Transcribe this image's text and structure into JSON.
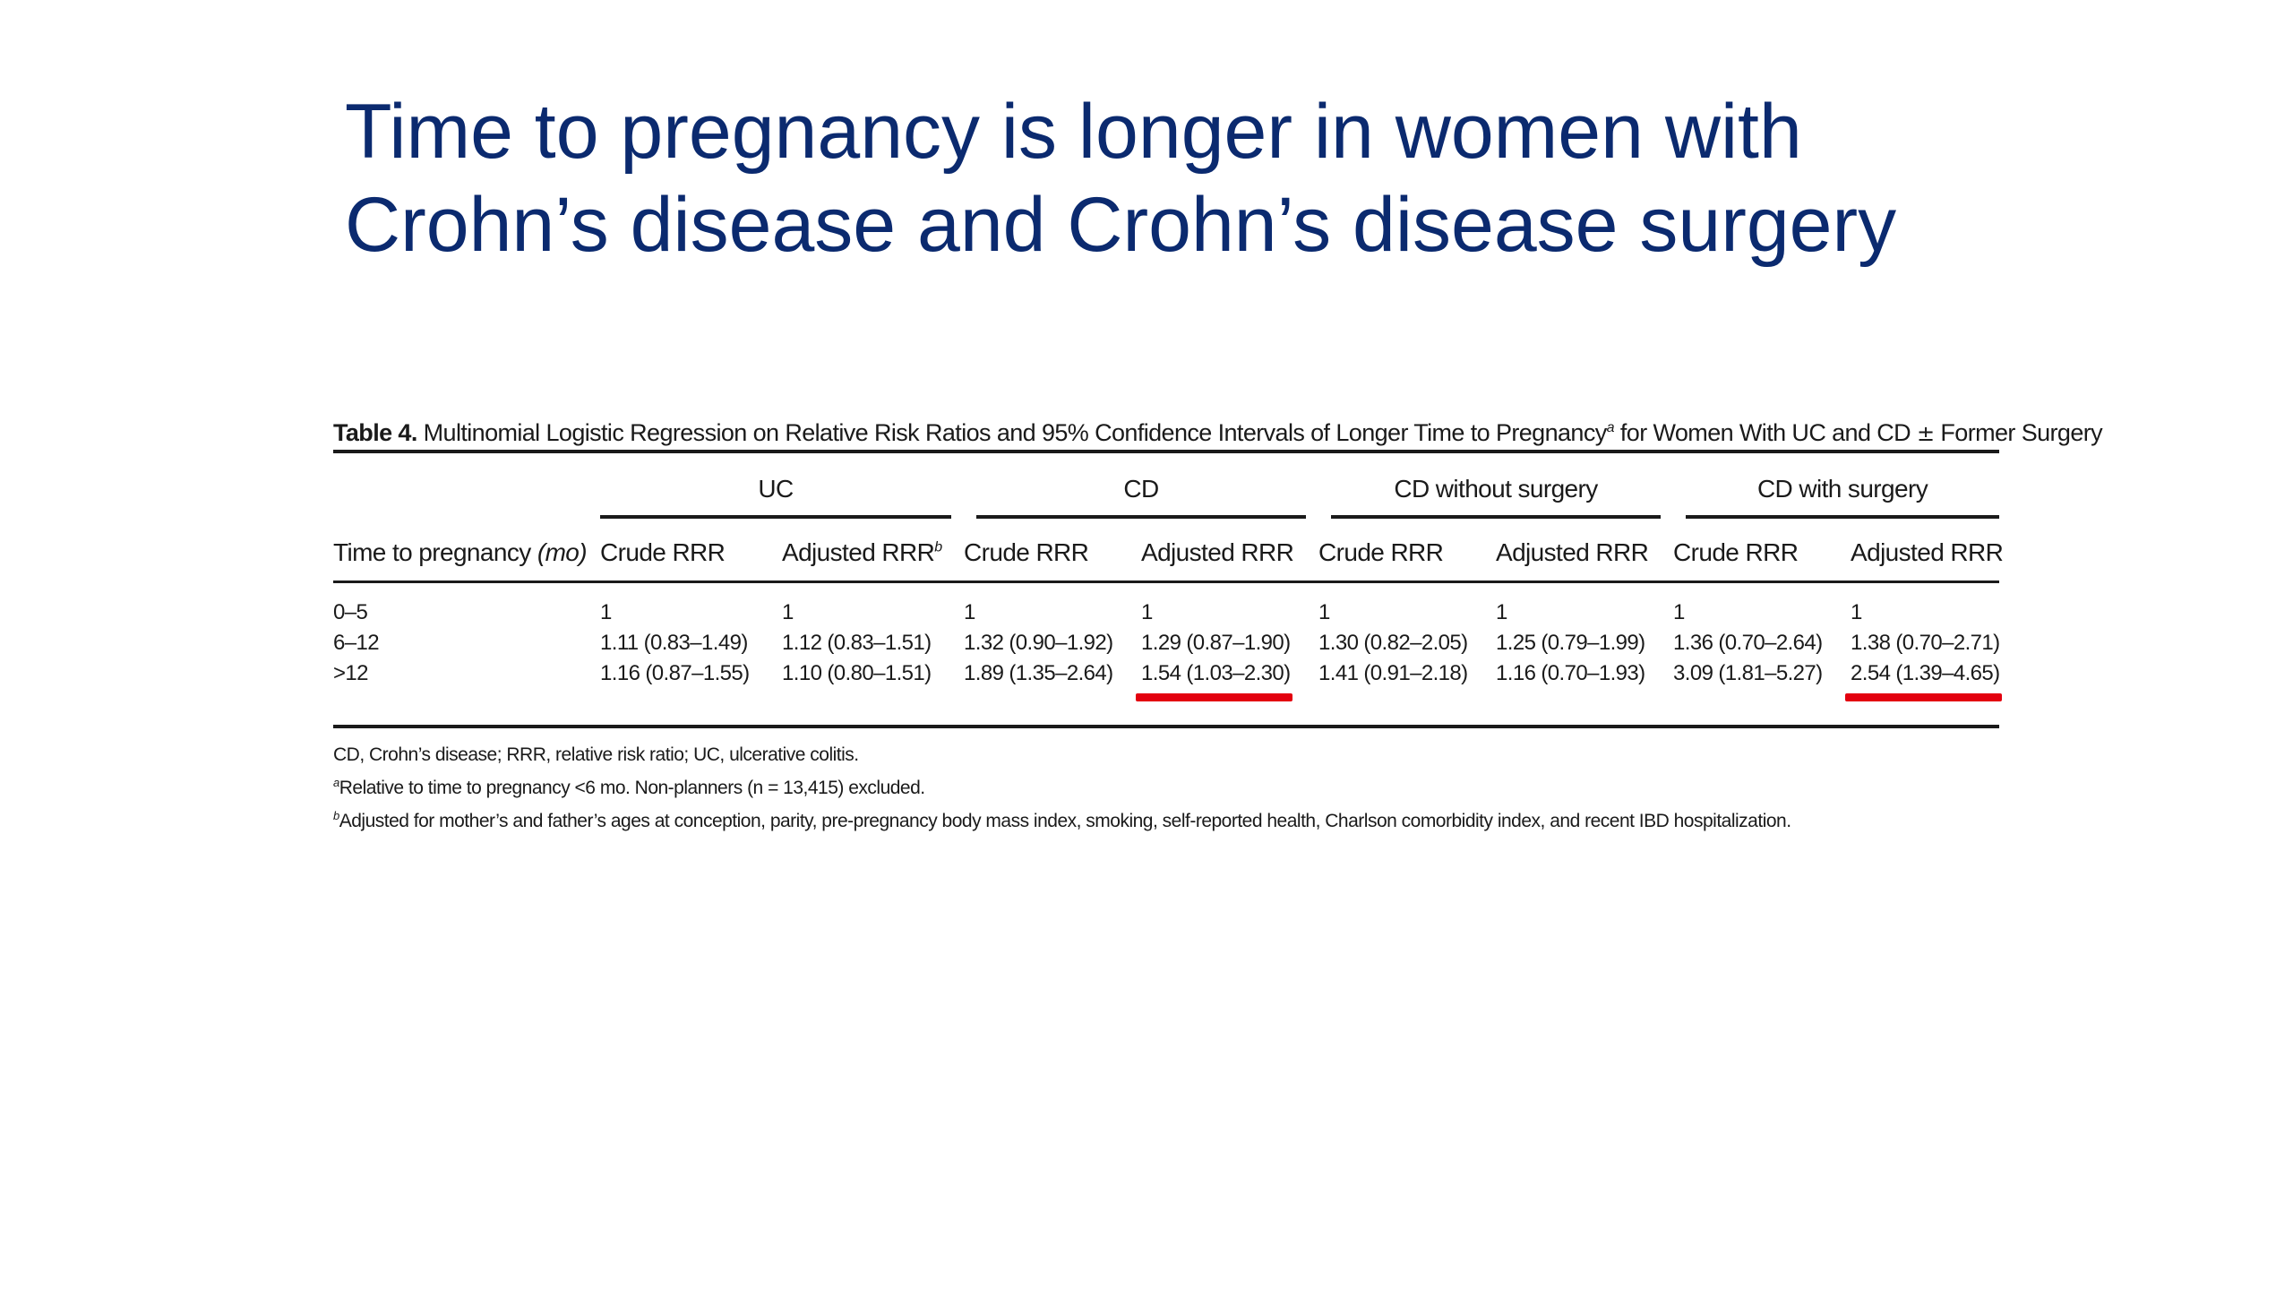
{
  "slide": {
    "title_line1": "Time to pregnancy is longer in women with",
    "title_line2": "Crohn’s disease and Crohn’s disease surgery"
  },
  "table": {
    "caption_label": "Table 4.",
    "caption_text": "Multinomial Logistic Regression on Relative Risk Ratios and 95% Confidence Intervals of Longer Time to Pregnancy",
    "caption_sup": "a",
    "caption_tail": "for Women With UC and CD",
    "caption_pm": "±",
    "caption_end": "Former Surgery",
    "groups": [
      "UC",
      "CD",
      "CD without surgery",
      "CD with surgery"
    ],
    "row_header_text": "Time to pregnancy",
    "row_header_unit": "(mo)",
    "subheaders": {
      "crude": "Crude RRR",
      "adjusted": "Adjusted RRR",
      "adjusted_sup": "b"
    },
    "rows": [
      {
        "label": "0–5",
        "cells": [
          "1",
          "1",
          "1",
          "1",
          "1",
          "1",
          "1",
          "1"
        ]
      },
      {
        "label": "6–12",
        "cells": [
          "1.11 (0.83–1.49)",
          "1.12 (0.83–1.51)",
          "1.32 (0.90–1.92)",
          "1.29 (0.87–1.90)",
          "1.30 (0.82–2.05)",
          "1.25 (0.79–1.99)",
          "1.36 (0.70–2.64)",
          "1.38 (0.70–2.71)"
        ]
      },
      {
        "label": ">12",
        "cells": [
          "1.16 (0.87–1.55)",
          "1.10 (0.80–1.51)",
          "1.89 (1.35–2.64)",
          "1.54 (1.03–2.30)",
          "1.41 (0.91–2.18)",
          "1.16 (0.70–1.93)",
          "3.09 (1.81–5.27)",
          "2.54 (1.39–4.65)"
        ]
      }
    ],
    "highlight_color": "#e3000f",
    "footnotes": {
      "abbrev": "CD, Crohn’s disease; RRR, relative risk ratio; UC, ulcerative colitis.",
      "a_sup": "a",
      "a_text": "Relative to time to pregnancy <6 mo. Non-planners (n = 13,415) excluded.",
      "b_sup": "b",
      "b_text": "Adjusted for mother’s and father’s ages at conception, parity, pre-pregnancy body mass index, smoking, self-reported health, Charlson comorbidity index, and recent IBD hospitalization."
    }
  },
  "colors": {
    "title": "#0b2a6f",
    "text": "#1a1a1a",
    "highlight": "#e3000f"
  }
}
